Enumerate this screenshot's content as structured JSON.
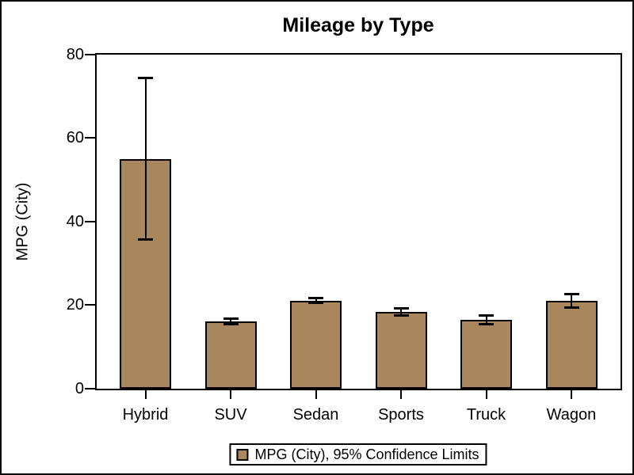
{
  "chart_data": {
    "type": "bar",
    "title": "Mileage by Type",
    "ylabel": "MPG (City)",
    "xlabel": "",
    "categories": [
      "Hybrid",
      "SUV",
      "Sedan",
      "Sports",
      "Truck",
      "Wagon"
    ],
    "values": [
      55.0,
      16.1,
      21.1,
      18.4,
      16.5,
      21.1
    ],
    "error_low": [
      35.6,
      15.3,
      20.5,
      17.5,
      15.4,
      19.4
    ],
    "error_high": [
      74.4,
      16.9,
      21.7,
      19.3,
      17.6,
      22.8
    ],
    "ylim": [
      0,
      80
    ],
    "yticks": [
      0,
      20,
      40,
      60,
      80
    ],
    "grid": false,
    "legend_position": "bottom-outside",
    "legend_label": "MPG (City), 95% Confidence Limits",
    "bar_color": "#A9875C",
    "outline_color": "#000000",
    "background_color": "#FFFFFF"
  }
}
